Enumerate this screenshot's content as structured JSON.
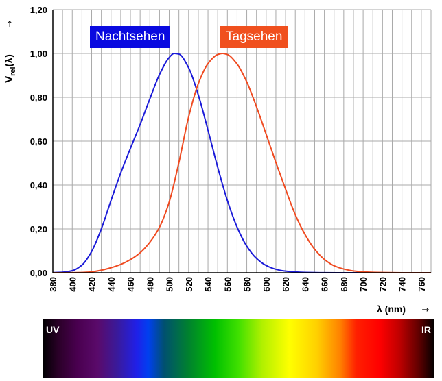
{
  "colors": {
    "night": "#1a1ad8",
    "day": "#ef4a20",
    "legend_night_bg": "#0a0ae0",
    "legend_day_bg": "#f0501e",
    "grid": "#a9a9a9",
    "axis": "#000000"
  },
  "chart_data": {
    "type": "line",
    "ylabel_main": "V",
    "ylabel_sub": "rel",
    "ylabel_tail": "(λ)",
    "ylabel_arrow": "→",
    "xlabel": "λ (nm)",
    "xlabel_arrow": "→",
    "xlim": [
      380,
      770
    ],
    "ylim": [
      0,
      1.2
    ],
    "x_ticks": [
      380,
      400,
      420,
      440,
      460,
      480,
      500,
      520,
      540,
      560,
      580,
      600,
      620,
      640,
      660,
      680,
      700,
      720,
      740,
      760
    ],
    "y_ticks": [
      {
        "value": 0.0,
        "label": "0,00"
      },
      {
        "value": 0.2,
        "label": "0,20"
      },
      {
        "value": 0.4,
        "label": "0,40"
      },
      {
        "value": 0.6,
        "label": "0,60"
      },
      {
        "value": 0.8,
        "label": "0,80"
      },
      {
        "value": 1.0,
        "label": "1,00"
      },
      {
        "value": 1.2,
        "label": "1,20"
      }
    ],
    "grid": true,
    "series": [
      {
        "name": "Nachtsehen",
        "color_key": "night",
        "x": [
          380,
          390,
          400,
          410,
          420,
          430,
          440,
          450,
          460,
          470,
          480,
          490,
          500,
          505,
          510,
          520,
          530,
          540,
          550,
          560,
          570,
          580,
          590,
          600,
          610,
          620,
          640,
          660,
          680,
          700,
          760
        ],
        "y": [
          0.0006,
          0.0022,
          0.0093,
          0.035,
          0.097,
          0.2,
          0.33,
          0.455,
          0.567,
          0.676,
          0.793,
          0.904,
          0.982,
          1.0,
          0.997,
          0.935,
          0.811,
          0.65,
          0.481,
          0.329,
          0.208,
          0.121,
          0.0655,
          0.0332,
          0.0159,
          0.0074,
          0.0015,
          0.0003,
          0.0001,
          0.0,
          0.0
        ]
      },
      {
        "name": "Tagsehen",
        "color_key": "day",
        "x": [
          380,
          390,
          400,
          410,
          420,
          430,
          440,
          450,
          460,
          470,
          480,
          490,
          500,
          510,
          520,
          530,
          540,
          550,
          555,
          560,
          570,
          580,
          590,
          600,
          610,
          620,
          630,
          640,
          650,
          660,
          670,
          680,
          690,
          700,
          720,
          740,
          770
        ],
        "y": [
          0.0,
          0.0001,
          0.0004,
          0.0012,
          0.004,
          0.0116,
          0.023,
          0.038,
          0.06,
          0.091,
          0.139,
          0.208,
          0.323,
          0.503,
          0.71,
          0.862,
          0.954,
          0.995,
          1.0,
          0.995,
          0.952,
          0.87,
          0.757,
          0.631,
          0.503,
          0.381,
          0.265,
          0.175,
          0.107,
          0.061,
          0.032,
          0.017,
          0.0082,
          0.0041,
          0.001,
          0.0002,
          0.0
        ]
      }
    ]
  },
  "spectrum": {
    "left_label": "UV",
    "right_label": "IR"
  }
}
